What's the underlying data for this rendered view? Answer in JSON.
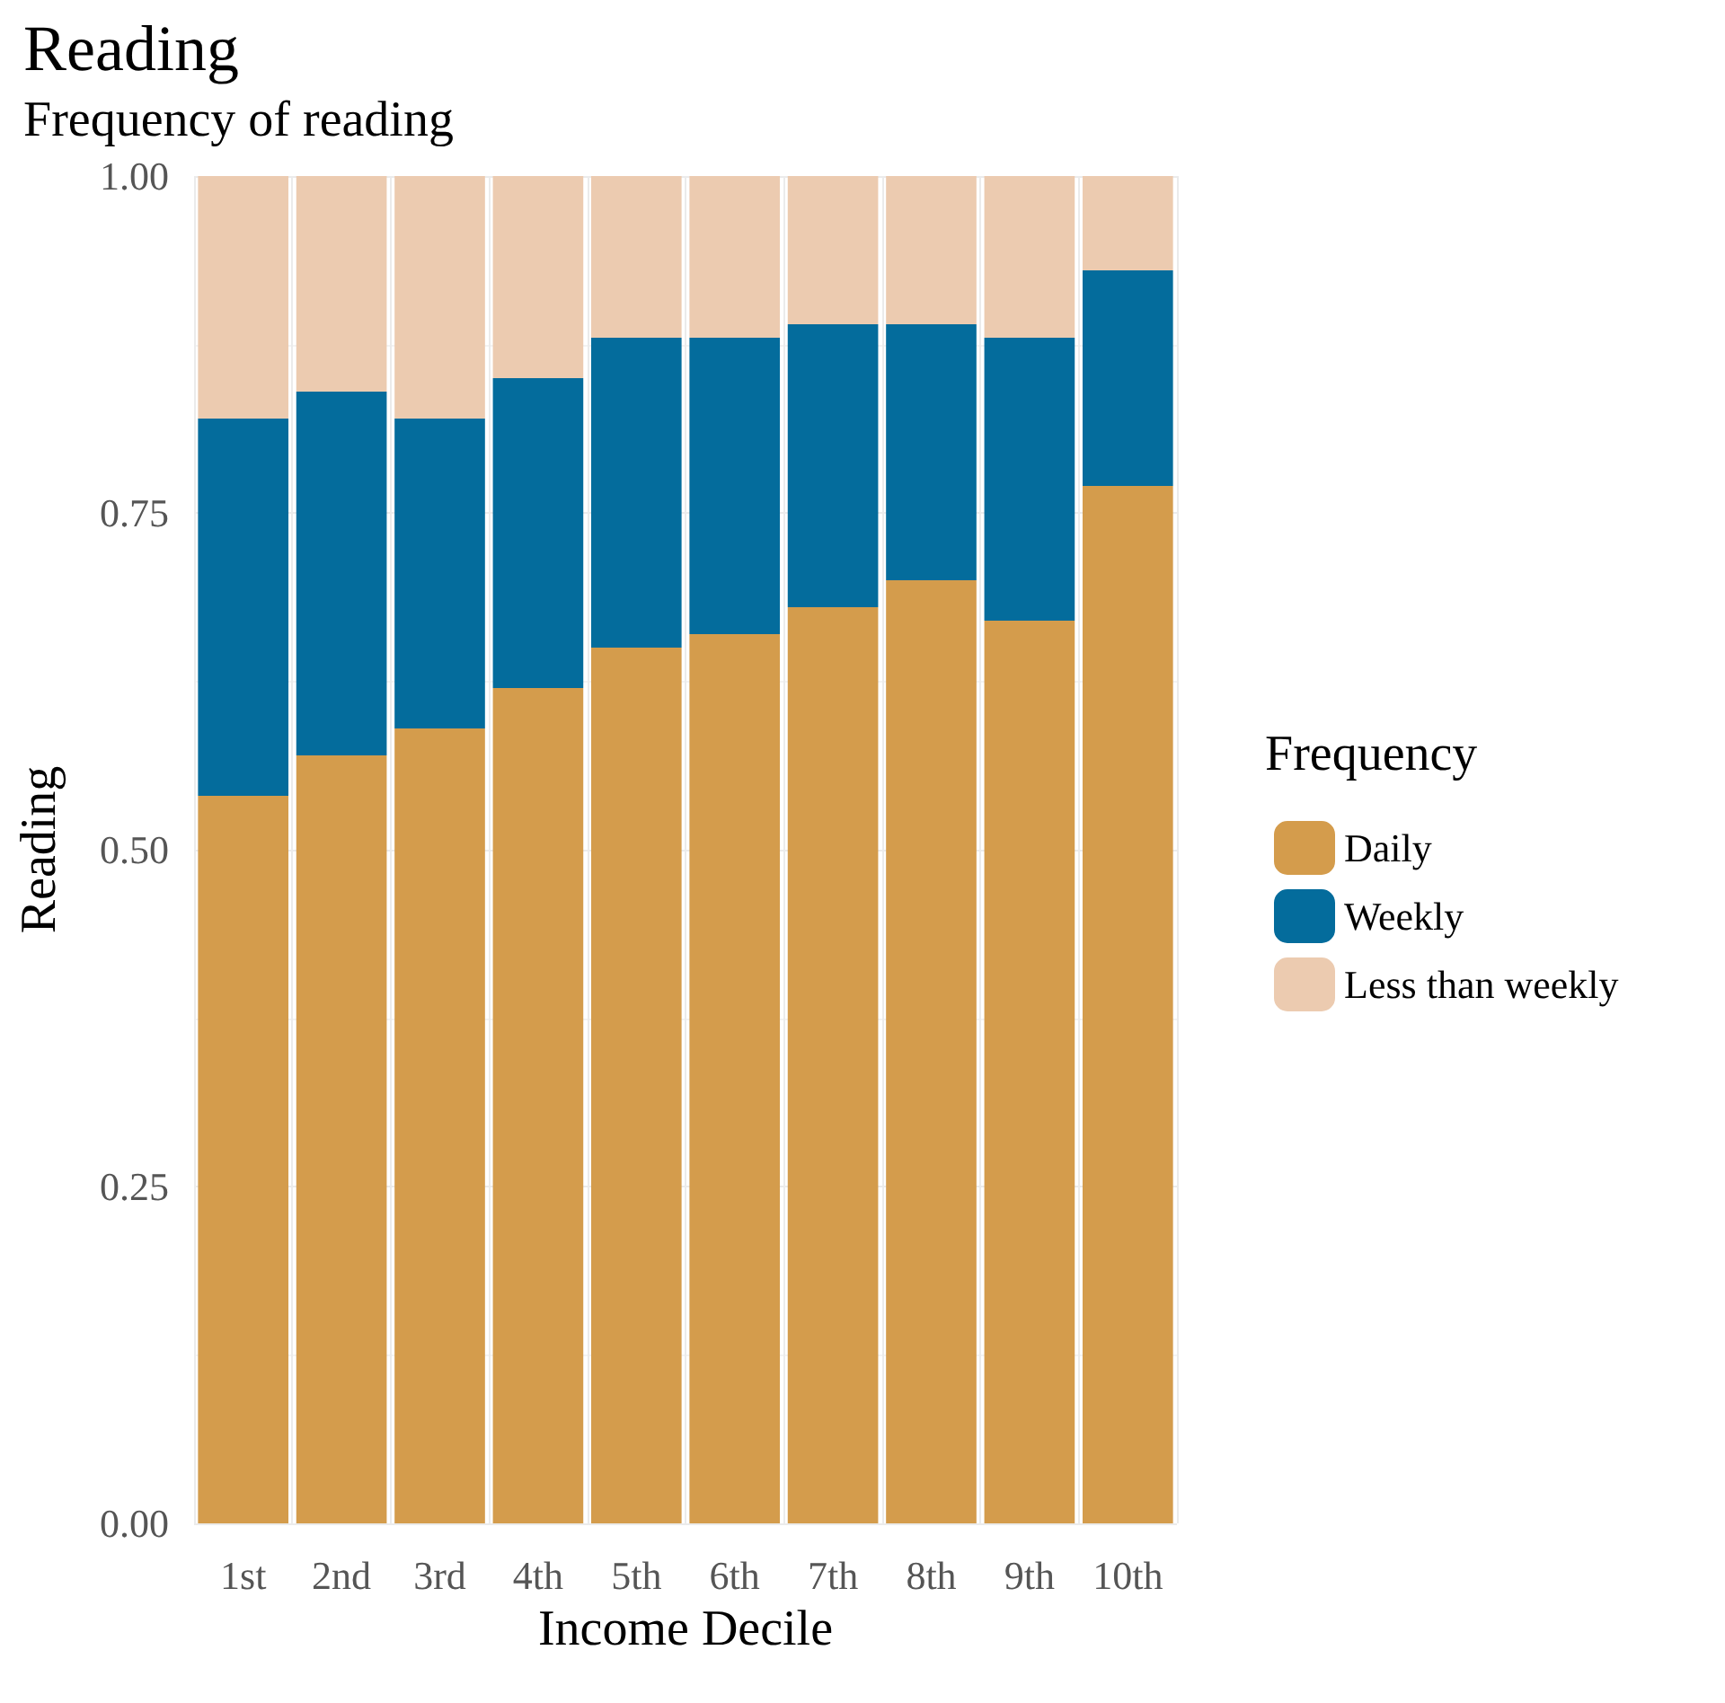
{
  "chart_data": {
    "type": "bar",
    "title": "Reading",
    "subtitle": "Frequency of reading",
    "xlabel": "Income Decile",
    "ylabel": "Reading",
    "legend_title": "Frequency",
    "categories": [
      "1st",
      "2nd",
      "3rd",
      "4th",
      "5th",
      "6th",
      "7th",
      "8th",
      "9th",
      "10th"
    ],
    "series": [
      {
        "name": "Daily",
        "color": "#d49c4c",
        "values": [
          0.54,
          0.57,
          0.59,
          0.62,
          0.65,
          0.66,
          0.68,
          0.7,
          0.67,
          0.77
        ]
      },
      {
        "name": "Weekly",
        "color": "#046c9c",
        "values": [
          0.28,
          0.27,
          0.23,
          0.23,
          0.23,
          0.22,
          0.21,
          0.19,
          0.21,
          0.16
        ]
      },
      {
        "name": "Less than weekly",
        "color": "#eccbb0",
        "values": [
          0.18,
          0.16,
          0.18,
          0.15,
          0.12,
          0.12,
          0.11,
          0.11,
          0.12,
          0.07
        ]
      }
    ],
    "stacked": true,
    "ylim": [
      0,
      1
    ],
    "yticks": [
      {
        "value": 0,
        "label": "0.00"
      },
      {
        "value": 0.25,
        "label": "0.25"
      },
      {
        "value": 0.5,
        "label": "0.50"
      },
      {
        "value": 0.75,
        "label": "0.75"
      },
      {
        "value": 1,
        "label": "1.00"
      }
    ],
    "grid": true,
    "legend": "right"
  }
}
